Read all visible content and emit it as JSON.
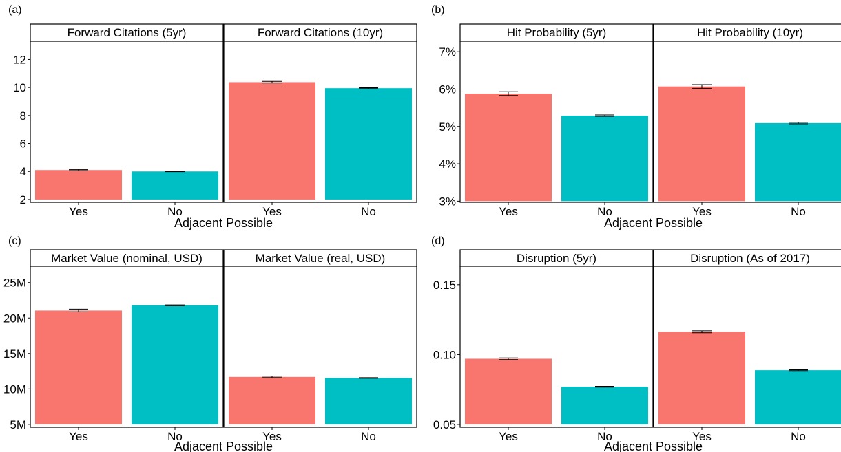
{
  "colors": {
    "yes": "#F8766D",
    "no": "#00BFC4"
  },
  "chart_data": [
    {
      "panel": "(a)",
      "type": "bar",
      "xlabel": "Adjacent Possible",
      "categories": [
        "Yes",
        "No"
      ],
      "ylim": [
        1.8,
        13.3
      ],
      "yticks": [
        2,
        4,
        6,
        8,
        10,
        12
      ],
      "ytick_labels": [
        "2",
        "4",
        "6",
        "8",
        "10",
        "12"
      ],
      "facets": [
        {
          "label": "Forward Citations (5yr)",
          "values": [
            4.1,
            4.0
          ],
          "errors": [
            0.04,
            0.02
          ]
        },
        {
          "label": "Forward Citations (10yr)",
          "values": [
            10.38,
            9.95
          ],
          "errors": [
            0.06,
            0.03
          ]
        }
      ]
    },
    {
      "panel": "(b)",
      "type": "bar",
      "xlabel": "Adjacent Possible",
      "categories": [
        "Yes",
        "No"
      ],
      "ylim": [
        0.0297,
        0.0728
      ],
      "yticks": [
        0.03,
        0.04,
        0.05,
        0.06,
        0.07
      ],
      "ytick_labels": [
        "3%",
        "4%",
        "5%",
        "6%",
        "7%"
      ],
      "facets": [
        {
          "label": "Hit Probability (5yr)",
          "values": [
            0.0588,
            0.0529
          ],
          "errors": [
            0.0005,
            0.0002
          ]
        },
        {
          "label": "Hit Probability (10yr)",
          "values": [
            0.0607,
            0.0509
          ],
          "errors": [
            0.0005,
            0.0002
          ]
        }
      ]
    },
    {
      "panel": "(c)",
      "type": "bar",
      "xlabel": "Adjacent Possible",
      "categories": [
        "Yes",
        "No"
      ],
      "ylim": [
        4.6,
        27.3
      ],
      "yticks": [
        5,
        10,
        15,
        20,
        25
      ],
      "ytick_labels": [
        "5M",
        "10M",
        "15M",
        "20M",
        "25M"
      ],
      "facets": [
        {
          "label": "Market Value (nominal, USD)",
          "values": [
            21.05,
            21.8
          ],
          "errors": [
            0.2,
            0.06
          ]
        },
        {
          "label": "Market Value (real, USD)",
          "values": [
            11.7,
            11.55
          ],
          "errors": [
            0.1,
            0.05
          ]
        }
      ]
    },
    {
      "panel": "(d)",
      "type": "bar",
      "xlabel": "Adjacent Possible",
      "categories": [
        "Yes",
        "No"
      ],
      "ylim": [
        0.048,
        0.1632
      ],
      "yticks": [
        0.05,
        0.1,
        0.15
      ],
      "ytick_labels": [
        "0.05",
        "0.10",
        "0.15"
      ],
      "facets": [
        {
          "label": "Disruption (5yr)",
          "values": [
            0.097,
            0.077
          ],
          "errors": [
            0.0006,
            0.0003
          ]
        },
        {
          "label": "Disruption (As of 2017)",
          "values": [
            0.1163,
            0.0888
          ],
          "errors": [
            0.0007,
            0.0003
          ]
        }
      ]
    }
  ]
}
